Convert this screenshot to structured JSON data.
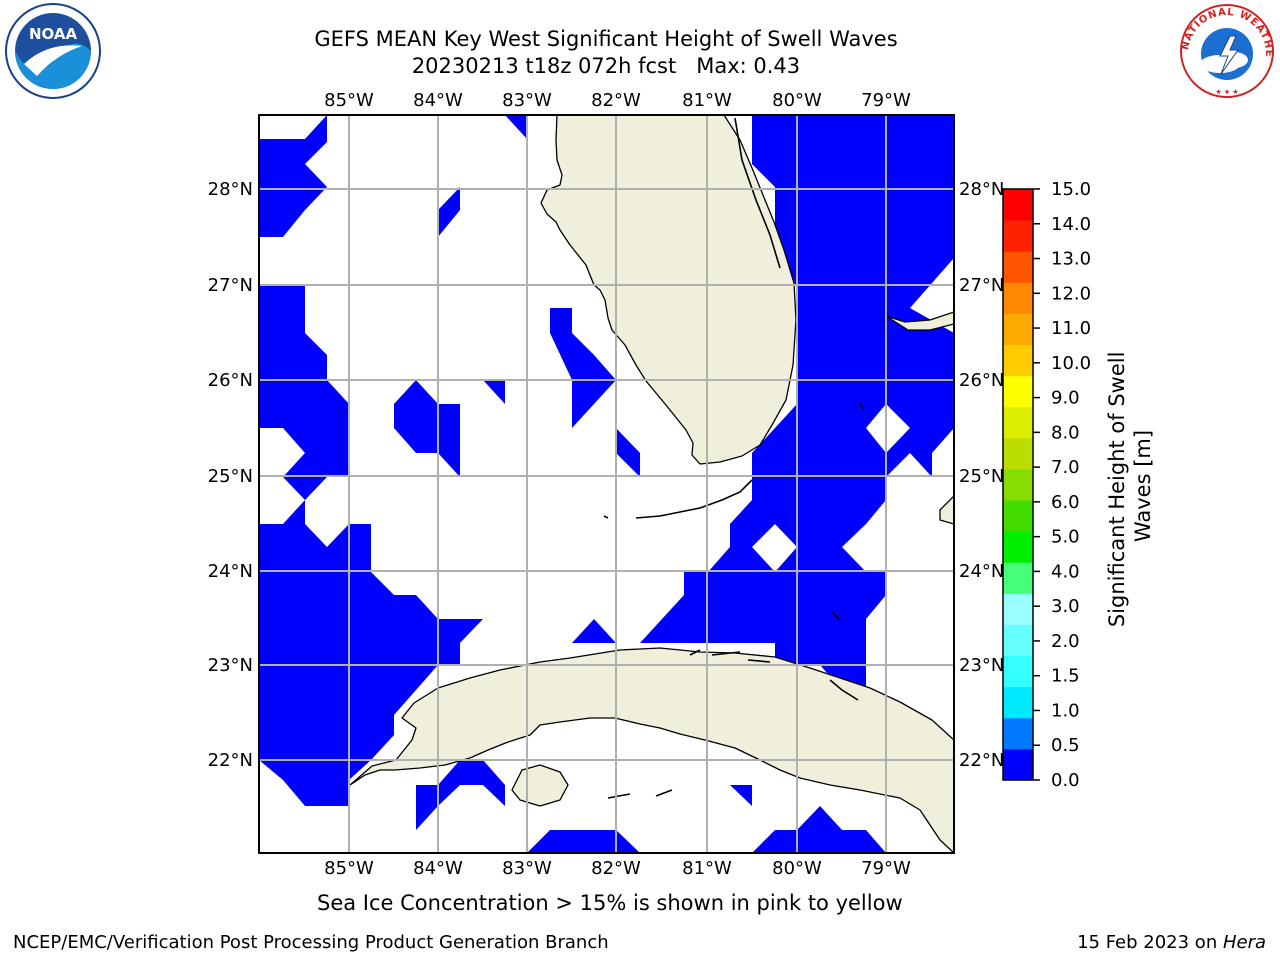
{
  "title": {
    "line1": "GEFS MEAN Key West Significant Height of Swell Waves",
    "line2": "20230213 t18z 072h fcst   Max: 0.43"
  },
  "map": {
    "lon_ticks": [
      "85°W",
      "84°W",
      "83°W",
      "82°W",
      "81°W",
      "80°W",
      "79°W"
    ],
    "lat_ticks": [
      "28°N",
      "27°N",
      "26°N",
      "25°N",
      "24°N",
      "23°N",
      "22°N"
    ],
    "lon_range": [
      -86.0,
      -78.25
    ],
    "lat_range": [
      21.0,
      28.75
    ],
    "land_color": "#efefdc",
    "wave_color": "#0000ff",
    "grid": true
  },
  "colorbar": {
    "label": "Significant Height of Swell Waves [m]",
    "ticks": [
      "0.0",
      "0.5",
      "1.0",
      "1.5",
      "2.0",
      "3.0",
      "4.0",
      "5.0",
      "6.0",
      "7.0",
      "8.0",
      "9.0",
      "10.0",
      "11.0",
      "12.0",
      "13.0",
      "14.0",
      "15.0"
    ],
    "colors": [
      "#0000ff",
      "#0078ff",
      "#00eaff",
      "#33ffff",
      "#66ffff",
      "#99ffff",
      "#44ff77",
      "#00ee00",
      "#44dd00",
      "#88dd00",
      "#bbdd00",
      "#ddee00",
      "#ffff00",
      "#ffcc00",
      "#ffaa00",
      "#ff8800",
      "#ff5500",
      "#ff2200",
      "#ff0000"
    ]
  },
  "footnote": "Sea Ice Concentration > 15% is shown in pink to yellow",
  "footer": {
    "left": "NCEP/EMC/Verification Post Processing Product Generation Branch",
    "right_date": "15 Feb 2023 on ",
    "right_host": "Hera"
  },
  "logos": {
    "noaa_text": "NOAA",
    "nws_text": "NATIONAL WEATHER SERVICE"
  }
}
